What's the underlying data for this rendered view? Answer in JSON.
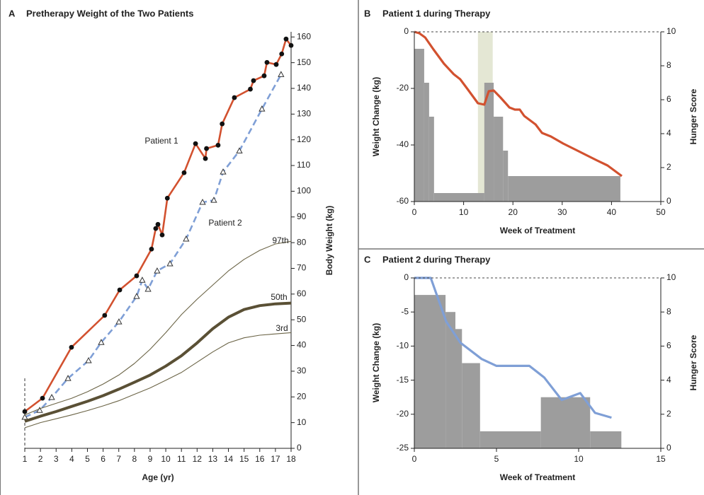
{
  "chart_data": [
    {
      "type": "line",
      "label": "A",
      "title": "Pretherapy Weight of the Two Patients",
      "xlabel": "Age (yr)",
      "ylabel": "Body Weight (kg)",
      "xlim": [
        1,
        18
      ],
      "ylim": [
        0,
        162
      ],
      "xticks": [
        1,
        2,
        3,
        4,
        5,
        6,
        7,
        8,
        9,
        10,
        11,
        12,
        13,
        14,
        15,
        16,
        17,
        18
      ],
      "yticks": [
        0,
        10,
        20,
        30,
        40,
        50,
        60,
        70,
        80,
        90,
        100,
        110,
        120,
        130,
        140,
        150,
        160
      ],
      "series": [
        {
          "name": "Patient 1",
          "color": "#d2512f",
          "marker": "circle",
          "x": [
            1.0,
            2.13,
            3.98,
            6.1,
            7.06,
            8.14,
            9.09,
            9.36,
            9.5,
            9.77,
            10.1,
            11.17,
            11.9,
            12.53,
            12.6,
            13.34,
            13.6,
            14.38,
            15.4,
            15.6,
            16.28,
            16.46,
            17.05,
            17.4,
            17.68,
            18.0
          ],
          "values": [
            14.3,
            19.5,
            39.3,
            51.7,
            61.6,
            67.1,
            77.5,
            85.5,
            87.1,
            83.0,
            97.3,
            107.2,
            118.5,
            112.7,
            116.6,
            117.9,
            126.2,
            136.4,
            139.7,
            143,
            144.9,
            150.1,
            149.3,
            153.4,
            159.2,
            156.7
          ]
        },
        {
          "name": "Patient 2",
          "color": "#7f9fd6",
          "marker": "triangle",
          "x": [
            1,
            1.95,
            2.72,
            3.76,
            5.07,
            5.88,
            7.01,
            8.14,
            8.5,
            8.87,
            9.45,
            10.27,
            11.3,
            12.35,
            13.07,
            13.66,
            14.7,
            16.14,
            17.36
          ],
          "values": [
            12.1,
            14.8,
            19.8,
            27.2,
            34.1,
            41.2,
            49.2,
            59.1,
            65.4,
            61.9,
            69.0,
            71.8,
            81.4,
            95.7,
            96.5,
            107.5,
            115.7,
            132,
            145.4
          ]
        },
        {
          "name": "97th",
          "color": "#6b6446",
          "x": [
            1,
            2,
            3,
            4,
            5,
            6,
            7,
            8,
            9,
            10,
            11,
            12,
            13,
            14,
            15,
            16,
            17,
            18
          ],
          "values": [
            13,
            15.5,
            17.5,
            19.5,
            22,
            25,
            28.5,
            33,
            38.5,
            45,
            52,
            58,
            63.5,
            69,
            73.5,
            77,
            79.5,
            80.5
          ]
        },
        {
          "name": "50th",
          "color": "#5a5035",
          "x": [
            1,
            2,
            3,
            4,
            5,
            6,
            7,
            8,
            9,
            10,
            11,
            12,
            13,
            14,
            15,
            16,
            17,
            18
          ],
          "values": [
            10.5,
            12.5,
            14.3,
            16.3,
            18.3,
            20.5,
            23,
            25.7,
            28.5,
            32,
            36,
            41,
            46.5,
            51,
            54,
            55.5,
            56.2,
            56.5
          ]
        },
        {
          "name": "3rd",
          "color": "#6b6446",
          "x": [
            1,
            2,
            3,
            4,
            5,
            6,
            7,
            8,
            9,
            10,
            11,
            12,
            13,
            14,
            15,
            16,
            17,
            18
          ],
          "values": [
            8,
            10,
            11.5,
            13,
            14.7,
            16.5,
            18.5,
            21,
            23.5,
            26.5,
            29.5,
            33.5,
            37.5,
            41,
            43,
            44,
            44.5,
            45
          ]
        }
      ]
    },
    {
      "type": "combo",
      "label": "B",
      "title": "Patient 1 during Therapy",
      "xlabel": "Week of Treatment",
      "ylabel": "Weight Change (kg)",
      "y2label": "Hunger Score",
      "xlim": [
        0,
        50
      ],
      "ylim": [
        -60,
        0
      ],
      "y2lim": [
        0,
        10
      ],
      "xticks": [
        0,
        10,
        20,
        30,
        40,
        50
      ],
      "yticks": [
        -60,
        -40,
        -20,
        0
      ],
      "y2ticks": [
        0,
        2,
        4,
        6,
        8,
        10
      ],
      "highlight_x": [
        12.9,
        15.9
      ],
      "highlight_color": "#dfe3cc",
      "bars": {
        "color": "#9d9d9d",
        "axis": "y2",
        "bins": [
          0,
          2,
          3,
          4,
          14.2,
          16.1,
          18,
          19,
          41.8
        ],
        "values": [
          9,
          7,
          5,
          0.5,
          7,
          5,
          3,
          1.5
        ]
      },
      "line": {
        "color": "#d2512f",
        "x": [
          0,
          1,
          2.2,
          3.9,
          6,
          8,
          9.3,
          10.9,
          12.9,
          14.2,
          15.1,
          16.1,
          17.5,
          19.3,
          20.4,
          21.4,
          22.3,
          24.6,
          25.9,
          27.7,
          30.2,
          32.8,
          34.8,
          37.1,
          39.2,
          42.1
        ],
        "values": [
          0,
          -0.5,
          -2,
          -6.25,
          -11.25,
          -15,
          -16.75,
          -20.5,
          -25.25,
          -25.75,
          -21,
          -20.75,
          -23.25,
          -26.75,
          -27.5,
          -27.5,
          -29.75,
          -32.75,
          -35.75,
          -37,
          -39.5,
          -41.75,
          -43.5,
          -45.5,
          -47.25,
          -51
        ]
      }
    },
    {
      "type": "combo",
      "label": "C",
      "title": "Patient 2 during Therapy",
      "xlabel": "Week of Treatment",
      "ylabel": "Weight Change (kg)",
      "y2label": "Hunger Score",
      "xlim": [
        0,
        15
      ],
      "ylim": [
        -25,
        0
      ],
      "y2lim": [
        0,
        10
      ],
      "xticks": [
        0,
        5,
        10,
        15
      ],
      "yticks": [
        -25,
        -20,
        -15,
        -10,
        -5,
        0
      ],
      "y2ticks": [
        0,
        2,
        4,
        6,
        8,
        10
      ],
      "bars": {
        "color": "#9d9d9d",
        "axis": "y2",
        "bins": [
          0,
          1.9,
          2.5,
          2.9,
          4,
          7.7,
          10.7,
          12.6
        ],
        "values": [
          9,
          8,
          7,
          5,
          1,
          3,
          1
        ]
      },
      "line": {
        "color": "#7f9fd6",
        "x": [
          0,
          1,
          1.94,
          2.8,
          4.1,
          5,
          7,
          7.9,
          8.97,
          10.1,
          11,
          12
        ],
        "values": [
          0,
          0,
          -6.4,
          -9.5,
          -11.9,
          -12.9,
          -12.9,
          -14.6,
          -17.9,
          -16.9,
          -19.8,
          -20.5
        ]
      }
    }
  ]
}
